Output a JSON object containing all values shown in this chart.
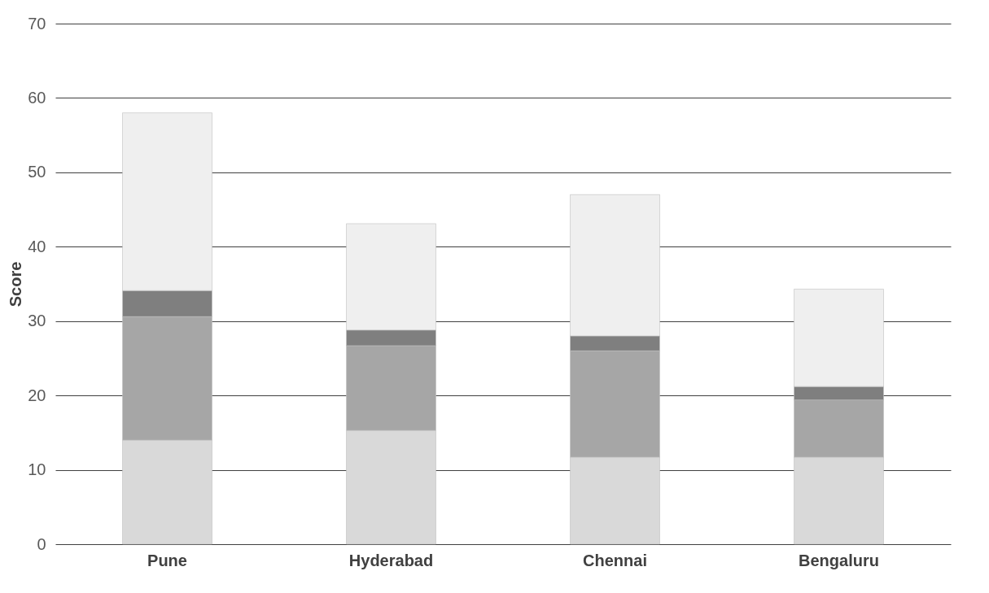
{
  "chart_data": {
    "type": "bar",
    "ylabel": "Score",
    "categories": [
      "Pune",
      "Hyderabad",
      "Chennai",
      "Bengaluru"
    ],
    "stacked": true,
    "series": [
      {
        "color": "#d9d9d9",
        "values": [
          14,
          15.3,
          11.7,
          11.7
        ]
      },
      {
        "color": "#a6a6a6",
        "values": [
          16.6,
          11.4,
          14.3,
          7.7
        ]
      },
      {
        "color": "#7f7f7f",
        "values": [
          3.5,
          2.1,
          2.0,
          1.8
        ]
      },
      {
        "color": "#efefef",
        "values": [
          23.9,
          14.3,
          19.0,
          13.1
        ]
      }
    ],
    "ylim": [
      0,
      70
    ],
    "yticks": [
      0,
      10,
      20,
      30,
      40,
      50,
      60,
      70
    ],
    "grid": "y",
    "legend": false
  }
}
